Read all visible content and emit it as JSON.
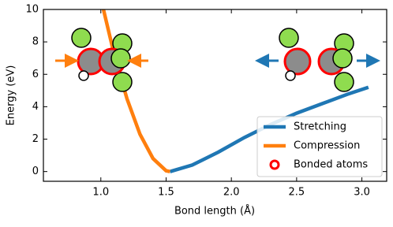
{
  "chart_data": {
    "type": "line",
    "xlabel": "Bond length (Å)",
    "ylabel": "Energy (eV)",
    "xlim": [
      0.56,
      3.19
    ],
    "ylim": [
      -0.6,
      10
    ],
    "xticks": [
      {
        "value": 1.0,
        "label": "1.0"
      },
      1.5,
      {
        "value": 2.0,
        "label": "2.0"
      },
      2.5,
      {
        "value": 3.0,
        "label": "3.0"
      }
    ],
    "yticks": [
      0,
      2,
      4,
      6,
      8,
      10
    ],
    "series": [
      {
        "name": "Stretching",
        "color": "#1f77b4",
        "x": [
          1.53,
          1.7,
          1.9,
          2.1,
          2.3,
          2.5,
          2.7,
          2.9,
          3.05
        ],
        "values": [
          0,
          0.4,
          1.2,
          2.1,
          2.9,
          3.6,
          4.2,
          4.8,
          5.2
        ]
      },
      {
        "name": "Compression",
        "color": "#ff7f0e",
        "x": [
          1.02,
          1.1,
          1.2,
          1.3,
          1.4,
          1.5,
          1.53
        ],
        "values": [
          10,
          7.3,
          4.5,
          2.3,
          0.8,
          0.05,
          0
        ]
      }
    ],
    "markers": [
      {
        "name": "Bonded atoms",
        "color": "#ff0000"
      }
    ],
    "legend": "lower right"
  }
}
